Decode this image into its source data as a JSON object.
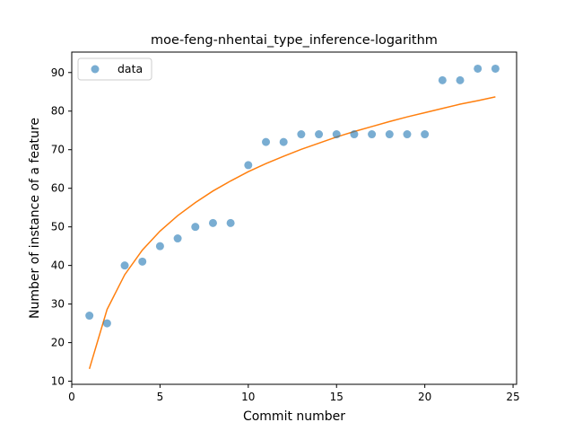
{
  "chart_data": {
    "type": "scatter",
    "title": "moe-feng-nhentai_type_inference-logarithm",
    "xlabel": "Commit number",
    "ylabel": "Number of instance of a feature",
    "xlim": [
      0,
      25.2
    ],
    "ylim": [
      9.2,
      95.3
    ],
    "xticks": [
      0,
      5,
      10,
      15,
      20,
      25
    ],
    "yticks": [
      10,
      20,
      30,
      40,
      50,
      60,
      70,
      80,
      90
    ],
    "legend": {
      "placement": "top-left",
      "entries": [
        "data"
      ]
    },
    "grid": false,
    "series": [
      {
        "name": "data",
        "kind": "scatter",
        "color": "#1f77b4",
        "x": [
          1,
          2,
          3,
          4,
          5,
          6,
          7,
          8,
          9,
          10,
          11,
          12,
          13,
          14,
          15,
          16,
          17,
          18,
          19,
          20,
          21,
          22,
          23,
          24
        ],
        "y": [
          27,
          25,
          40,
          41,
          45,
          47,
          50,
          51,
          51,
          66,
          72,
          72,
          74,
          74,
          74,
          74,
          74,
          74,
          74,
          74,
          88,
          88,
          91,
          91
        ]
      },
      {
        "kind": "line",
        "color": "#ff7f0e",
        "x": [
          1,
          2,
          3,
          4,
          5,
          6,
          7,
          8,
          9,
          10,
          11,
          12,
          13,
          14,
          15,
          16,
          17,
          18,
          19,
          20,
          21,
          22,
          23,
          24
        ],
        "y": [
          13.2,
          28.6,
          37.6,
          44.0,
          48.9,
          52.9,
          56.3,
          59.3,
          61.9,
          64.3,
          66.4,
          68.3,
          70.1,
          71.7,
          73.3,
          74.7,
          76.0,
          77.3,
          78.5,
          79.6,
          80.7,
          81.8,
          82.7,
          83.7
        ]
      }
    ]
  }
}
